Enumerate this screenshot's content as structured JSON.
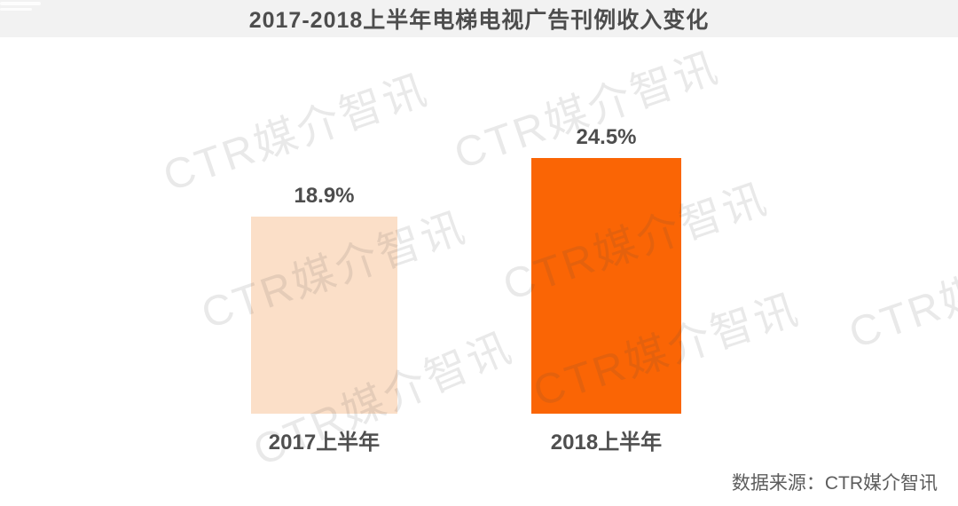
{
  "header": {
    "title": "2017-2018上半年电梯电视广告刊例收入变化"
  },
  "chart_data": {
    "type": "bar",
    "title": "2017-2018上半年电梯电视广告刊例收入变化",
    "categories": [
      "2017上半年",
      "2018上半年"
    ],
    "values": [
      18.9,
      24.5
    ],
    "value_labels": [
      "18.9%",
      "24.5%"
    ],
    "unit": "percent_growth",
    "ylim": [
      0,
      28
    ],
    "bar_colors": [
      "#fbdfc8",
      "#fa6505"
    ],
    "grid": false,
    "axis_lines": false,
    "legend_position": "none"
  },
  "watermark": {
    "text": "CTR媒介智讯"
  },
  "footer": {
    "source_label": "数据来源：CTR媒介智讯"
  },
  "colors": {
    "accent_orange": "#fa6505",
    "light_peach": "#fbdfc8",
    "header_bg": "#f2f2f2",
    "text_gray": "#4d4d4d"
  }
}
